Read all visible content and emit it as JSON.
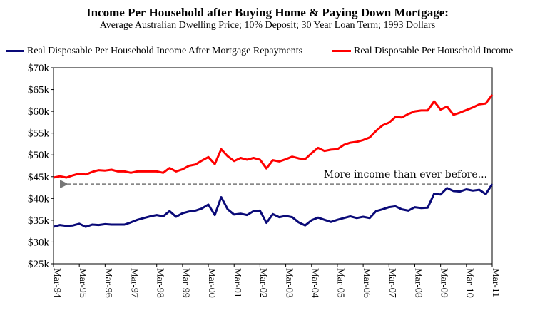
{
  "chart_data": {
    "type": "line",
    "title": "Income Per Household after Buying Home & Paying Down Mortgage:",
    "subtitle": "Average Australian Dwelling Price; 10% Deposit; 30 Year Loan Term; 1993 Dollars",
    "xlabel": "",
    "ylabel": "",
    "ylim": [
      25000,
      70000
    ],
    "y_ticks": [
      "$25k",
      "$30k",
      "$35k",
      "$40k",
      "$45k",
      "$50k",
      "$55k",
      "$60k",
      "$65k",
      "$70k"
    ],
    "x_start": "Mar-94",
    "x_end": "Mar-11",
    "x_ticks": [
      "Mar-94",
      "Mar-95",
      "Mar-96",
      "Mar-97",
      "Mar-98",
      "Mar-99",
      "Mar-00",
      "Mar-01",
      "Mar-02",
      "Mar-03",
      "Mar-04",
      "Mar-05",
      "Mar-06",
      "Mar-07",
      "Mar-08",
      "Mar-09",
      "Mar-10",
      "Mar-11"
    ],
    "grid": false,
    "legend_position": "top",
    "series": [
      {
        "name": "Real Disposable Per Household Income After Mortgage Repayments",
        "color": "#0a0a78",
        "values": [
          33500,
          33900,
          33700,
          33800,
          34200,
          33500,
          34000,
          33900,
          34100,
          34000,
          34000,
          34000,
          34500,
          35100,
          35500,
          35900,
          36200,
          35900,
          37100,
          35800,
          36600,
          37000,
          37200,
          37700,
          38600,
          36200,
          40300,
          37500,
          36300,
          36500,
          36200,
          37100,
          37200,
          34400,
          36400,
          35700,
          36000,
          35700,
          34500,
          33800,
          35000,
          35600,
          35100,
          34600,
          35100,
          35500,
          35900,
          35500,
          35800,
          35500,
          37100,
          37500,
          38000,
          38200,
          37500,
          37200,
          38000,
          37800,
          37900,
          41100,
          40900,
          42400,
          41700,
          41600,
          42100,
          41800,
          42000,
          41000,
          43300
        ]
      },
      {
        "name": "Real Disposable Per Household Income",
        "color": "#ff0000",
        "values": [
          44800,
          45100,
          44800,
          45300,
          45700,
          45500,
          46100,
          46500,
          46400,
          46600,
          46200,
          46200,
          45900,
          46200,
          46200,
          46200,
          46200,
          45900,
          47000,
          46200,
          46700,
          47500,
          47800,
          48700,
          49500,
          47900,
          51300,
          49700,
          48600,
          49300,
          48900,
          49300,
          48900,
          46900,
          48800,
          48500,
          49000,
          49600,
          49200,
          49000,
          50400,
          51600,
          50900,
          51200,
          51300,
          52300,
          52800,
          53000,
          53400,
          54000,
          55500,
          56800,
          57400,
          58700,
          58600,
          59400,
          60000,
          60200,
          60200,
          62300,
          60400,
          61100,
          59200,
          59700,
          60300,
          60900,
          61600,
          61800,
          63800
        ]
      }
    ],
    "annotations": [
      {
        "text": "More income than ever before...",
        "arrow_from_x": 68,
        "arrow_to_x": 0,
        "arrow_y": 43300
      }
    ]
  }
}
